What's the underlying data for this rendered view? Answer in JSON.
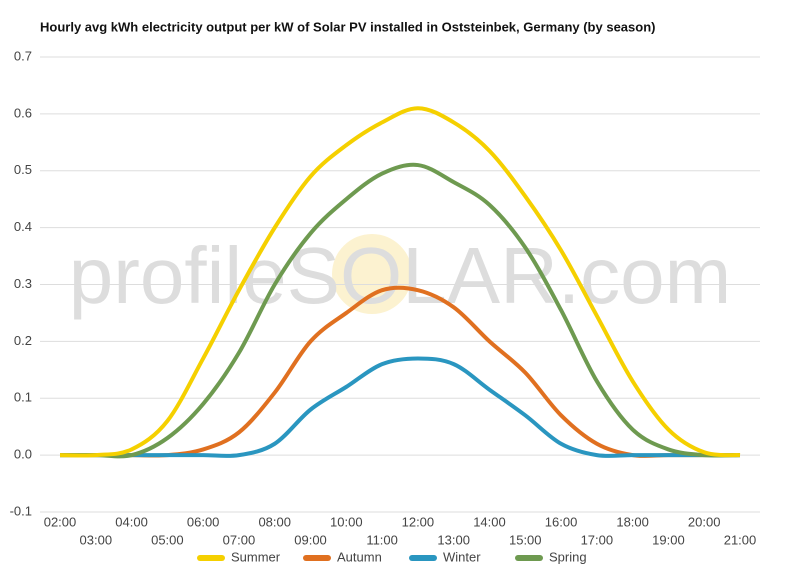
{
  "chart_data": {
    "type": "line",
    "title": "Hourly avg kWh electricity output per kW of Solar PV installed in Oststeinbek, Germany (by season)",
    "watermark": "profileSOLAR.com",
    "categories": [
      "02:00",
      "03:00",
      "04:00",
      "05:00",
      "06:00",
      "07:00",
      "08:00",
      "09:00",
      "10:00",
      "11:00",
      "12:00",
      "13:00",
      "14:00",
      "15:00",
      "16:00",
      "17:00",
      "18:00",
      "19:00",
      "20:00",
      "21:00"
    ],
    "series": [
      {
        "name": "Summer",
        "color": "#f5d000",
        "values": [
          0,
          0,
          0.01,
          0.06,
          0.17,
          0.29,
          0.4,
          0.49,
          0.545,
          0.585,
          0.61,
          0.585,
          0.535,
          0.455,
          0.36,
          0.245,
          0.13,
          0.045,
          0.005,
          0
        ]
      },
      {
        "name": "Autumn",
        "color": "#e07020",
        "values": [
          0,
          0,
          0,
          0,
          0.01,
          0.04,
          0.11,
          0.2,
          0.25,
          0.29,
          0.29,
          0.26,
          0.2,
          0.145,
          0.07,
          0.02,
          0,
          0,
          0,
          0
        ]
      },
      {
        "name": "Winter",
        "color": "#2a96c0",
        "values": [
          0,
          0,
          0,
          0,
          0,
          0,
          0.02,
          0.08,
          0.12,
          0.16,
          0.17,
          0.16,
          0.115,
          0.07,
          0.02,
          0,
          0,
          0,
          0,
          0
        ]
      },
      {
        "name": "Spring",
        "color": "#6e9a50",
        "values": [
          0,
          0,
          0,
          0.03,
          0.09,
          0.18,
          0.3,
          0.39,
          0.45,
          0.495,
          0.51,
          0.48,
          0.44,
          0.365,
          0.255,
          0.13,
          0.045,
          0.01,
          0,
          0
        ]
      }
    ],
    "ylim": [
      -0.1,
      0.7
    ],
    "yticks": [
      -0.1,
      {
        "value": 0,
        "label": "0.0"
      },
      0.1,
      0.2,
      0.3,
      0.4,
      0.5,
      0.6,
      0.7
    ],
    "grid": true,
    "legend": "bottom"
  }
}
